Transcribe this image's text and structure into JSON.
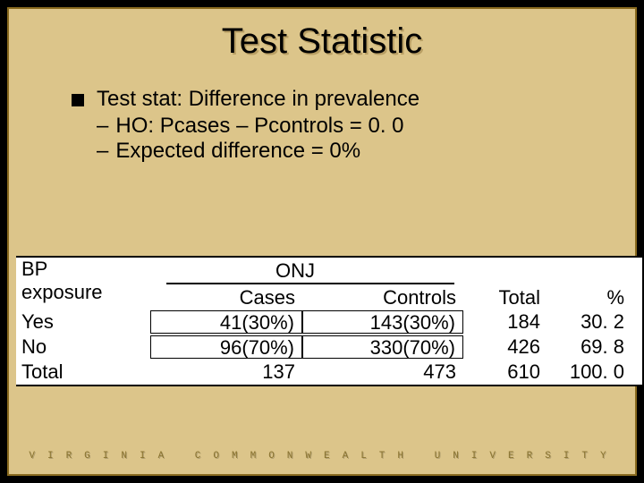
{
  "title": "Test Statistic",
  "bullet": {
    "main_prefix": "Test stat: ",
    "main_emph": "Difference in prevalence",
    "sub1": "HO: Pcases – Pcontrols = 0. 0",
    "sub2": "Expected difference = 0%"
  },
  "table": {
    "bp_label_line1": "BP",
    "bp_label_line2": "exposure",
    "onj_label": "ONJ",
    "headers": {
      "cases": "Cases",
      "controls": "Controls",
      "total": "Total",
      "pct": "%"
    },
    "rows": [
      {
        "label": "Yes",
        "cases": "41(30%)",
        "controls": "143(30%)",
        "total": "184",
        "pct": "30. 2"
      },
      {
        "label": "No",
        "cases": "96(70%)",
        "controls": "330(70%)",
        "total": "426",
        "pct": "69. 8"
      },
      {
        "label": "Total",
        "cases": "137",
        "controls": "473",
        "total": "610",
        "pct": "100. 0"
      }
    ]
  },
  "footer": {
    "line1": "VIRGINIA COMMONWEALTH UNIVERSITY"
  },
  "colors": {
    "slide_bg": "#dcc58a",
    "page_bg": "#000000",
    "table_bg": "#ffffff",
    "border": "#8a6b1f",
    "footer_text": "#8a7430"
  }
}
